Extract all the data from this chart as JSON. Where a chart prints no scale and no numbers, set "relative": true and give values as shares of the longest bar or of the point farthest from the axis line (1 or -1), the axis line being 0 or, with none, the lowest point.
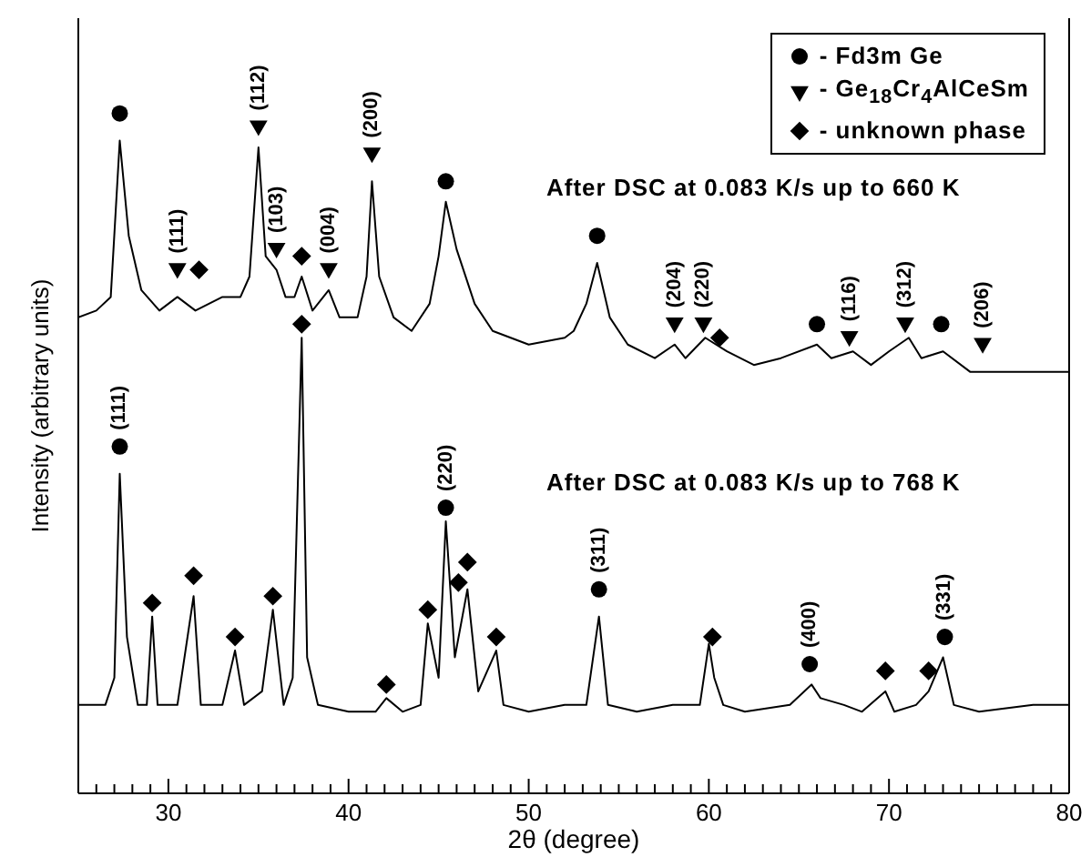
{
  "chart_data": {
    "type": "line",
    "relative": true,
    "xlabel": "2θ (degree)",
    "ylabel": "Intensity (arbitrary units)",
    "xlim": [
      25,
      80
    ],
    "xticks": [
      {
        "value": 26,
        "label": null
      },
      {
        "value": 27,
        "label": null
      },
      {
        "value": 28,
        "label": null
      },
      {
        "value": 29,
        "label": null
      },
      30,
      {
        "value": 31,
        "label": null
      },
      {
        "value": 32,
        "label": null
      },
      {
        "value": 33,
        "label": null
      },
      {
        "value": 34,
        "label": null
      },
      {
        "value": 35,
        "label": null
      },
      {
        "value": 36,
        "label": null
      },
      {
        "value": 37,
        "label": null
      },
      {
        "value": 38,
        "label": null
      },
      {
        "value": 39,
        "label": null
      },
      40,
      {
        "value": 41,
        "label": null
      },
      {
        "value": 42,
        "label": null
      },
      {
        "value": 43,
        "label": null
      },
      {
        "value": 44,
        "label": null
      },
      {
        "value": 45,
        "label": null
      },
      {
        "value": 46,
        "label": null
      },
      {
        "value": 47,
        "label": null
      },
      {
        "value": 48,
        "label": null
      },
      {
        "value": 49,
        "label": null
      },
      50,
      {
        "value": 51,
        "label": null
      },
      {
        "value": 52,
        "label": null
      },
      {
        "value": 53,
        "label": null
      },
      {
        "value": 54,
        "label": null
      },
      {
        "value": 55,
        "label": null
      },
      {
        "value": 56,
        "label": null
      },
      {
        "value": 57,
        "label": null
      },
      {
        "value": 58,
        "label": null
      },
      {
        "value": 59,
        "label": null
      },
      60,
      {
        "value": 61,
        "label": null
      },
      {
        "value": 62,
        "label": null
      },
      {
        "value": 63,
        "label": null
      },
      {
        "value": 64,
        "label": null
      },
      {
        "value": 65,
        "label": null
      },
      {
        "value": 66,
        "label": null
      },
      {
        "value": 67,
        "label": null
      },
      {
        "value": 68,
        "label": null
      },
      {
        "value": 69,
        "label": null
      },
      70,
      {
        "value": 71,
        "label": null
      },
      {
        "value": 72,
        "label": null
      },
      {
        "value": 73,
        "label": null
      },
      {
        "value": 74,
        "label": null
      },
      {
        "value": 75,
        "label": null
      },
      {
        "value": 76,
        "label": null
      },
      {
        "value": 77,
        "label": null
      },
      {
        "value": 78,
        "label": null
      },
      {
        "value": 79,
        "label": null
      },
      80
    ],
    "legend": "top right",
    "line_style": "solid",
    "series": [
      {
        "color": "#000000",
        "marker": "none",
        "x": [
          25,
          26,
          26.8,
          27.3,
          27.8,
          28.5,
          29.5,
          30.5,
          31.5,
          33,
          34,
          34.5,
          35,
          35.4,
          36,
          36.5,
          37,
          37.4,
          38,
          38.9,
          39.5,
          40.5,
          41,
          41.3,
          41.7,
          42.5,
          43.5,
          44.5,
          45,
          45.4,
          46,
          47,
          48,
          50,
          52,
          52.5,
          53.2,
          53.8,
          54.5,
          55.5,
          57,
          58.1,
          58.7,
          59.8,
          61,
          62.5,
          64,
          66,
          66.8,
          68,
          69,
          70,
          71.1,
          71.8,
          73,
          74.5,
          76,
          78,
          80
        ],
        "values": [
          0.7,
          0.71,
          0.73,
          0.96,
          0.82,
          0.74,
          0.71,
          0.73,
          0.71,
          0.73,
          0.73,
          0.76,
          0.95,
          0.79,
          0.77,
          0.73,
          0.73,
          0.76,
          0.71,
          0.74,
          0.7,
          0.7,
          0.76,
          0.9,
          0.76,
          0.7,
          0.68,
          0.72,
          0.79,
          0.87,
          0.8,
          0.72,
          0.68,
          0.66,
          0.67,
          0.68,
          0.72,
          0.78,
          0.7,
          0.66,
          0.64,
          0.66,
          0.64,
          0.67,
          0.65,
          0.63,
          0.64,
          0.66,
          0.64,
          0.65,
          0.63,
          0.65,
          0.67,
          0.64,
          0.65,
          0.62,
          0.62,
          0.62,
          0.62
        ]
      },
      {
        "color": "#000000",
        "marker": "none",
        "x": [
          25,
          26.5,
          27,
          27.3,
          27.7,
          28.3,
          28.8,
          29.1,
          29.4,
          30.5,
          31.4,
          31.8,
          33,
          33.7,
          34.2,
          35.2,
          35.8,
          36.4,
          36.9,
          37.4,
          37.7,
          38.3,
          40,
          41.5,
          42.1,
          43,
          44,
          44.4,
          45,
          45.4,
          45.9,
          46.6,
          47.2,
          48.2,
          48.6,
          50,
          52,
          53.2,
          53.9,
          54.4,
          56,
          58,
          59.5,
          60,
          60.3,
          60.8,
          62,
          64.5,
          65.7,
          66.2,
          67.5,
          68.5,
          69.8,
          70.3,
          71.5,
          72.2,
          73,
          73.6,
          75,
          78,
          80
        ],
        "values": [
          0.13,
          0.13,
          0.17,
          0.47,
          0.23,
          0.13,
          0.13,
          0.26,
          0.13,
          0.13,
          0.29,
          0.13,
          0.13,
          0.21,
          0.13,
          0.15,
          0.27,
          0.13,
          0.17,
          0.67,
          0.2,
          0.13,
          0.12,
          0.12,
          0.14,
          0.12,
          0.13,
          0.25,
          0.17,
          0.4,
          0.2,
          0.3,
          0.15,
          0.21,
          0.13,
          0.12,
          0.13,
          0.13,
          0.26,
          0.13,
          0.12,
          0.13,
          0.13,
          0.22,
          0.17,
          0.13,
          0.12,
          0.13,
          0.16,
          0.14,
          0.13,
          0.12,
          0.15,
          0.12,
          0.13,
          0.15,
          0.2,
          0.13,
          0.12,
          0.13,
          0.13
        ]
      },
      {
        "type": "scatter",
        "name": "- Fd3m Ge",
        "color": "#000000",
        "marker": "circle",
        "x": [
          27.3,
          45.4,
          53.8,
          66.0,
          72.9,
          27.3,
          45.4,
          53.9,
          65.6,
          73.1
        ],
        "values": [
          1,
          0.9,
          0.82,
          0.69,
          0.69,
          0.51,
          0.42,
          0.3,
          0.19,
          0.23
        ]
      },
      {
        "type": "scatter",
        "name": "- Ge$_{18}$Cr$_{4}$AlCeSm",
        "color": "#000000",
        "marker": "triangle",
        "x": [
          30.5,
          35.0,
          36.0,
          38.9,
          41.3,
          58.1,
          59.7,
          67.8,
          70.9,
          75.2
        ],
        "values": [
          0.77,
          0.98,
          0.8,
          0.77,
          0.94,
          0.69,
          0.69,
          0.67,
          0.69,
          0.66
        ]
      },
      {
        "type": "scatter",
        "name": "- unknown phase",
        "color": "#000000",
        "marker": "diamond",
        "x": [
          31.7,
          37.4,
          60.6,
          37.4,
          29.1,
          31.4,
          33.7,
          35.8,
          42.1,
          44.4,
          46.1,
          46.6,
          48.2,
          60.2,
          69.8,
          72.2
        ],
        "values": [
          0.77,
          0.79,
          0.67,
          0.69,
          0.28,
          0.32,
          0.23,
          0.29,
          0.16,
          0.27,
          0.31,
          0.34,
          0.23,
          0.23,
          0.18,
          0.18
        ]
      }
    ],
    "annotations": [
      "After DSC at 0.083 K/s up to 660 K",
      "After DSC at 0.083 K/s up to 768 K",
      {
        "text": "(111)",
        "x": 30.5,
        "y": 0.77
      },
      {
        "text": "(112)",
        "x": 35.0,
        "y": 0.98
      },
      {
        "text": "(103)",
        "x": 36.0,
        "y": 0.8
      },
      {
        "text": "(004)",
        "x": 38.9,
        "y": 0.77
      },
      {
        "text": "(200)",
        "x": 41.3,
        "y": 0.94
      },
      {
        "text": "(204)",
        "x": 58.1,
        "y": 0.69
      },
      {
        "text": "(220)",
        "x": 59.7,
        "y": 0.69
      },
      {
        "text": "(116)",
        "x": 67.8,
        "y": 0.67
      },
      {
        "text": "(312)",
        "x": 70.9,
        "y": 0.69
      },
      {
        "text": "(206)",
        "x": 75.2,
        "y": 0.66
      },
      {
        "text": "(111)",
        "x": 27.3,
        "y": 0.51
      },
      {
        "text": "(220)",
        "x": 45.4,
        "y": 0.42
      },
      {
        "text": "(311)",
        "x": 53.9,
        "y": 0.3
      },
      {
        "text": "(400)",
        "x": 65.6,
        "y": 0.19
      },
      {
        "text": "(331)",
        "x": 73.1,
        "y": 0.23
      }
    ]
  }
}
